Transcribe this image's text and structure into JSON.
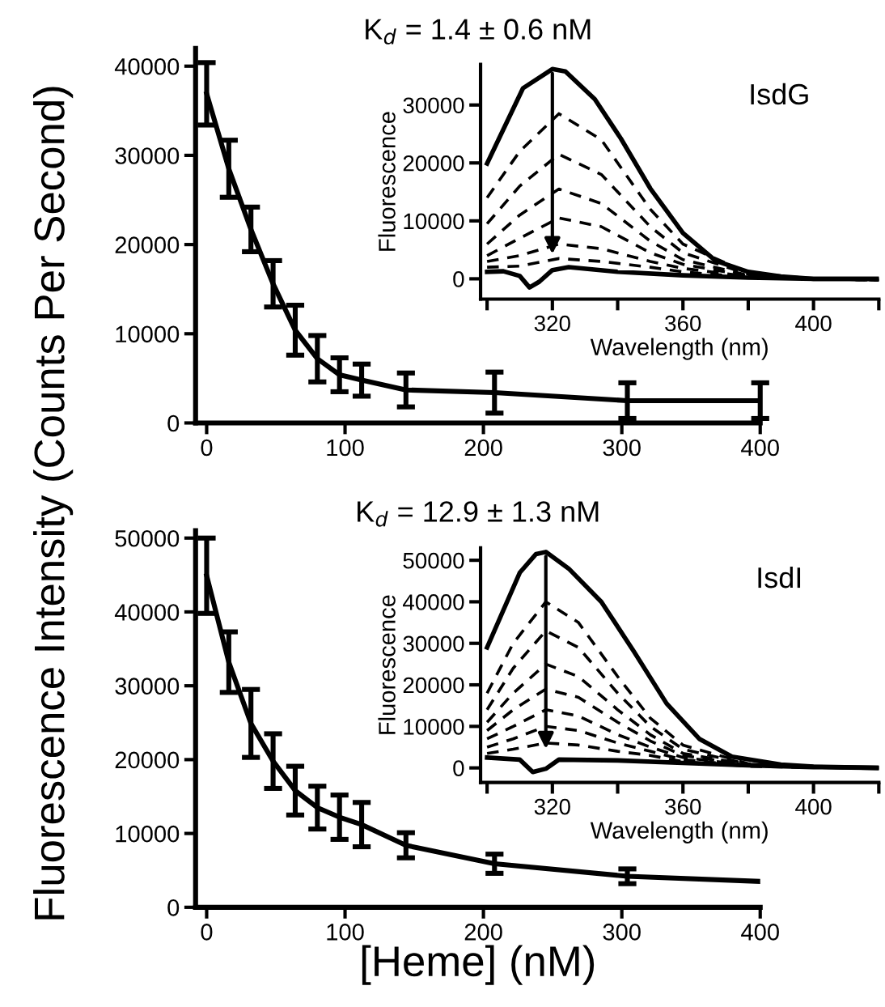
{
  "chart_data": [
    {
      "type": "line",
      "title": "K$_{d}$ = 1.4 ± 0.6 nM",
      "ylabel": "Fluorescence Intensity (Counts Per Second)",
      "x": [
        0,
        16,
        32,
        48,
        64,
        80,
        96,
        112,
        144,
        208,
        304,
        400
      ],
      "series": [
        {
          "color": "#000000",
          "line_style": "solid",
          "values": [
            36900,
            28500,
            21700,
            15600,
            10400,
            7200,
            5400,
            4800,
            3700,
            3400,
            2500,
            2500
          ],
          "errors": [
            3500,
            3200,
            2500,
            2600,
            2800,
            2600,
            1900,
            1800,
            1900,
            2300,
            2000,
            2000
          ]
        }
      ],
      "xlim": [
        -8,
        400
      ],
      "xticks": [
        0,
        100,
        200,
        300,
        400
      ],
      "ylim": [
        0,
        42000
      ],
      "yticks": [
        0,
        10000,
        20000,
        30000,
        40000
      ],
      "grid": false,
      "tick_labels": "xy"
    },
    {
      "type": "line",
      "xlabel": "Wavelength (nm)",
      "ylabel": "Fluorescence",
      "annotations": [
        "IsdG"
      ],
      "x": [
        300,
        310,
        322,
        335,
        350,
        360,
        380,
        400,
        420
      ],
      "series": [
        {
          "color": "#000000",
          "line_style": "solid",
          "x": [
            300,
            311,
            320,
            324,
            333,
            341,
            350,
            360,
            370,
            380,
            390,
            400,
            420
          ],
          "values": [
            19900,
            32900,
            36200,
            35800,
            31000,
            24200,
            15600,
            7900,
            3100,
            1200,
            400,
            0,
            0
          ]
        },
        {
          "color": "#000000",
          "line_style": "dashed",
          "values": [
            14000,
            22000,
            28500,
            24000,
            12000,
            6000,
            1000,
            0,
            -200
          ]
        },
        {
          "color": "#000000",
          "line_style": "dashed",
          "values": [
            9500,
            16000,
            21500,
            18000,
            9000,
            4500,
            800,
            0,
            -200
          ]
        },
        {
          "color": "#000000",
          "line_style": "dashed",
          "values": [
            6000,
            11000,
            15500,
            13000,
            6500,
            3300,
            600,
            0,
            -200
          ]
        },
        {
          "color": "#000000",
          "line_style": "dashed",
          "values": [
            4000,
            7000,
            10500,
            9000,
            4500,
            2500,
            500,
            0,
            -200
          ]
        },
        {
          "color": "#000000",
          "line_style": "dashed",
          "values": [
            3000,
            4000,
            6000,
            5200,
            3000,
            1800,
            400,
            0,
            -200
          ]
        },
        {
          "color": "#000000",
          "line_style": "dashed",
          "values": [
            2000,
            2200,
            3500,
            3000,
            2000,
            1200,
            300,
            0,
            -200
          ]
        },
        {
          "color": "#000000",
          "line_style": "solid",
          "x": [
            300,
            305,
            310,
            313,
            316,
            320,
            325,
            340,
            360,
            380,
            400,
            420
          ],
          "values": [
            1200,
            1300,
            500,
            -1500,
            -500,
            1500,
            2000,
            1200,
            600,
            200,
            0,
            0
          ]
        }
      ],
      "xlim": [
        298,
        420
      ],
      "xticks": [
        {
          "value": 300,
          "label": null
        },
        320,
        {
          "value": 340,
          "label": null
        },
        360,
        {
          "value": 380,
          "label": null
        },
        400,
        {
          "value": 420,
          "label": null
        }
      ],
      "ylim": [
        -3500,
        37000
      ],
      "yticks": [
        0,
        10000,
        20000,
        30000
      ],
      "grid": false
    },
    {
      "type": "line",
      "title": "K$_{d}$ = 12.9 ± 1.3 nM",
      "xlabel": "[Heme] (nM)",
      "x": [
        0,
        16,
        32,
        48,
        64,
        80,
        96,
        112,
        144,
        208,
        304,
        400
      ],
      "series": [
        {
          "color": "#000000",
          "line_style": "solid",
          "values": [
            44900,
            33200,
            24900,
            19800,
            15800,
            13500,
            12200,
            11200,
            8400,
            5900,
            4200,
            3500
          ],
          "errors": [
            5100,
            4100,
            4600,
            3700,
            3300,
            2900,
            3000,
            3000,
            1700,
            1300,
            1000,
            null
          ]
        }
      ],
      "xlim": [
        -8,
        400
      ],
      "xticks": [
        0,
        100,
        200,
        300,
        400
      ],
      "ylim": [
        0,
        51000
      ],
      "yticks": [
        0,
        10000,
        20000,
        30000,
        40000,
        50000
      ],
      "grid": false
    },
    {
      "type": "line",
      "xlabel": "Wavelength (nm)",
      "ylabel": "Fluorescence",
      "annotations": [
        "IsdI"
      ],
      "x": [
        300,
        308,
        318,
        328,
        340,
        350,
        360,
        380,
        400,
        420
      ],
      "series": [
        {
          "color": "#000000",
          "line_style": "solid",
          "x": [
            300,
            310,
            315,
            318,
            325,
            335,
            345,
            355,
            365,
            375,
            390,
            400,
            420
          ],
          "values": [
            29000,
            47000,
            51500,
            52000,
            48000,
            40000,
            28000,
            15500,
            7000,
            2700,
            800,
            300,
            0
          ]
        },
        {
          "color": "#000000",
          "line_style": "dashed",
          "values": [
            18000,
            30000,
            40000,
            35000,
            22000,
            12000,
            5500,
            1000,
            200,
            0
          ]
        },
        {
          "color": "#000000",
          "line_style": "dashed",
          "values": [
            14000,
            24000,
            33000,
            29000,
            18000,
            10000,
            4500,
            900,
            200,
            0
          ]
        },
        {
          "color": "#000000",
          "line_style": "dashed",
          "values": [
            11000,
            18000,
            25000,
            22000,
            14000,
            8000,
            3500,
            800,
            200,
            0
          ]
        },
        {
          "color": "#000000",
          "line_style": "dashed",
          "values": [
            9000,
            14000,
            19000,
            17000,
            11000,
            6500,
            3000,
            700,
            200,
            0
          ]
        },
        {
          "color": "#000000",
          "line_style": "dashed",
          "values": [
            7000,
            10000,
            14000,
            12500,
            8000,
            5000,
            2500,
            600,
            200,
            0
          ]
        },
        {
          "color": "#000000",
          "line_style": "dashed",
          "values": [
            5000,
            7000,
            10000,
            9000,
            6000,
            4000,
            2000,
            500,
            200,
            0
          ]
        },
        {
          "color": "#000000",
          "line_style": "dashed",
          "values": [
            3500,
            4500,
            6000,
            5500,
            4000,
            3000,
            1500,
            400,
            100,
            0
          ]
        },
        {
          "color": "#000000",
          "line_style": "solid",
          "x": [
            300,
            310,
            314,
            318,
            322,
            340,
            360,
            380,
            400,
            420
          ],
          "values": [
            2500,
            2000,
            -1000,
            -200,
            2000,
            1800,
            1200,
            600,
            200,
            0
          ]
        }
      ],
      "xlim": [
        298,
        420
      ],
      "xticks": [
        {
          "value": 300,
          "label": null
        },
        320,
        {
          "value": 340,
          "label": null
        },
        360,
        {
          "value": 380,
          "label": null
        },
        400,
        {
          "value": 420,
          "label": null
        }
      ],
      "ylim": [
        -3500,
        53000
      ],
      "yticks": [
        0,
        10000,
        20000,
        30000,
        40000,
        50000
      ],
      "grid": false
    }
  ]
}
